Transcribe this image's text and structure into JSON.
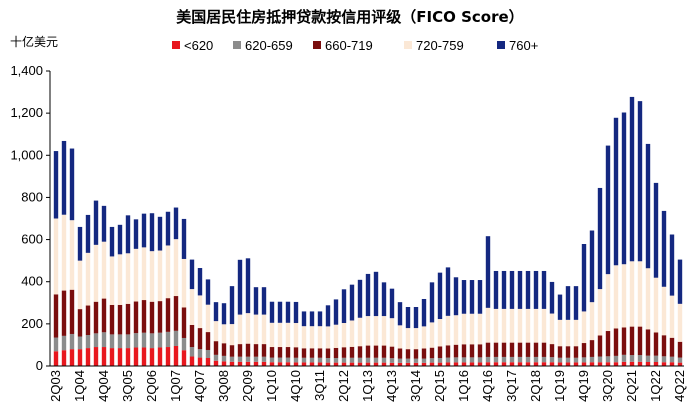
{
  "chart_data": {
    "type": "bar",
    "stacked": true,
    "title": "美国居民住房抵押贷款按信用评级（FICO Score）",
    "unit_label": "十亿美元",
    "ylim": [
      0,
      1400
    ],
    "yticks": [
      "0",
      "200",
      "400",
      "600",
      "800",
      "1,000",
      "1,200",
      "1,400"
    ],
    "legend_position": "top",
    "categories": [
      "2Q03",
      "3Q03",
      "4Q03",
      "1Q04",
      "2Q04",
      "3Q04",
      "4Q04",
      "1Q05",
      "2Q05",
      "3Q05",
      "4Q05",
      "1Q06",
      "2Q06",
      "3Q06",
      "4Q06",
      "1Q07",
      "2Q07",
      "3Q07",
      "4Q07",
      "1Q08",
      "2Q08",
      "3Q08",
      "4Q08",
      "1Q09",
      "2Q09",
      "3Q09",
      "4Q09",
      "1Q10",
      "2Q10",
      "3Q10",
      "4Q10",
      "1Q11",
      "2Q11",
      "3Q11",
      "4Q11",
      "1Q12",
      "2Q12",
      "3Q12",
      "4Q12",
      "1Q13",
      "2Q13",
      "3Q13",
      "4Q13",
      "1Q14",
      "2Q14",
      "3Q14",
      "4Q14",
      "1Q15",
      "2Q15",
      "3Q15",
      "4Q15",
      "1Q16",
      "2Q16",
      "3Q16",
      "4Q16",
      "1Q17",
      "2Q17",
      "3Q17",
      "4Q17",
      "1Q18",
      "2Q18",
      "3Q18",
      "4Q18",
      "1Q19",
      "2Q19",
      "3Q19",
      "4Q19",
      "1Q20",
      "2Q20",
      "3Q20",
      "4Q20",
      "1Q21",
      "2Q21",
      "3Q21",
      "4Q21",
      "1Q22",
      "2Q22",
      "3Q22",
      "4Q22"
    ],
    "xtick_labels": [
      "2Q03",
      "1Q04",
      "4Q04",
      "3Q05",
      "2Q06",
      "1Q07",
      "4Q07",
      "3Q08",
      "2Q09",
      "1Q10",
      "4Q10",
      "3Q11",
      "2Q12",
      "1Q13",
      "4Q13",
      "3Q14",
      "2Q15",
      "1Q16",
      "4Q16",
      "3Q17",
      "2Q18",
      "1Q19",
      "4Q19",
      "3Q20",
      "2Q21",
      "1Q22",
      "4Q22"
    ],
    "series": [
      {
        "name": "<620",
        "color": "#e8171e",
        "values": [
          70,
          75,
          80,
          80,
          85,
          90,
          90,
          85,
          85,
          85,
          88,
          88,
          85,
          88,
          90,
          95,
          75,
          45,
          40,
          38,
          25,
          22,
          20,
          20,
          20,
          20,
          20,
          18,
          18,
          18,
          17,
          17,
          17,
          17,
          16,
          16,
          16,
          16,
          16,
          16,
          16,
          16,
          15,
          15,
          15,
          15,
          15,
          16,
          16,
          17,
          17,
          17,
          17,
          17,
          18,
          18,
          18,
          18,
          18,
          18,
          18,
          18,
          18,
          17,
          17,
          17,
          17,
          18,
          18,
          18,
          18,
          20,
          20,
          20,
          19,
          19,
          18,
          18,
          16
        ]
      },
      {
        "name": "620-659",
        "color": "#8c8c8c",
        "values": [
          65,
          68,
          72,
          60,
          62,
          65,
          70,
          65,
          65,
          65,
          68,
          70,
          70,
          70,
          72,
          72,
          58,
          45,
          40,
          38,
          28,
          26,
          24,
          24,
          24,
          24,
          24,
          22,
          22,
          22,
          22,
          22,
          22,
          22,
          22,
          22,
          23,
          23,
          23,
          23,
          23,
          23,
          22,
          20,
          20,
          20,
          20,
          21,
          22,
          23,
          24,
          24,
          24,
          24,
          25,
          25,
          25,
          25,
          25,
          25,
          25,
          25,
          24,
          22,
          22,
          22,
          24,
          25,
          27,
          28,
          30,
          33,
          32,
          32,
          30,
          30,
          28,
          26,
          24
        ]
      },
      {
        "name": "660-719",
        "color": "#7a0e0e",
        "values": [
          205,
          215,
          210,
          130,
          140,
          150,
          160,
          140,
          140,
          145,
          150,
          155,
          150,
          150,
          160,
          165,
          145,
          105,
          100,
          85,
          65,
          60,
          55,
          60,
          62,
          60,
          60,
          50,
          50,
          50,
          50,
          45,
          45,
          45,
          45,
          48,
          50,
          52,
          55,
          58,
          58,
          58,
          55,
          48,
          45,
          45,
          48,
          50,
          55,
          58,
          60,
          62,
          62,
          62,
          68,
          68,
          68,
          68,
          68,
          68,
          68,
          68,
          62,
          55,
          55,
          55,
          68,
          80,
          100,
          120,
          130,
          130,
          135,
          135,
          125,
          110,
          100,
          90,
          75
        ]
      },
      {
        "name": "720-759",
        "color": "#fbe8d6",
        "values": [
          360,
          360,
          330,
          230,
          250,
          270,
          270,
          230,
          240,
          240,
          250,
          250,
          240,
          240,
          250,
          270,
          230,
          170,
          155,
          130,
          95,
          90,
          100,
          140,
          145,
          140,
          140,
          115,
          115,
          115,
          115,
          105,
          105,
          105,
          105,
          110,
          115,
          125,
          135,
          140,
          140,
          140,
          135,
          110,
          100,
          100,
          105,
          120,
          130,
          140,
          140,
          145,
          145,
          145,
          165,
          160,
          160,
          160,
          160,
          160,
          160,
          160,
          145,
          125,
          125,
          125,
          150,
          180,
          220,
          270,
          300,
          300,
          310,
          310,
          290,
          260,
          230,
          200,
          180
        ]
      },
      {
        "name": "760+",
        "color": "#142880",
        "values": [
          320,
          350,
          340,
          160,
          180,
          210,
          170,
          140,
          140,
          180,
          140,
          160,
          180,
          160,
          160,
          150,
          190,
          140,
          130,
          120,
          90,
          100,
          180,
          260,
          260,
          130,
          130,
          100,
          100,
          100,
          100,
          70,
          70,
          70,
          100,
          120,
          160,
          170,
          180,
          200,
          210,
          160,
          140,
          110,
          100,
          100,
          130,
          190,
          220,
          230,
          180,
          160,
          160,
          160,
          340,
          180,
          180,
          180,
          180,
          180,
          180,
          180,
          150,
          120,
          160,
          160,
          320,
          340,
          480,
          610,
          700,
          720,
          780,
          760,
          590,
          450,
          360,
          290,
          210
        ]
      }
    ]
  }
}
